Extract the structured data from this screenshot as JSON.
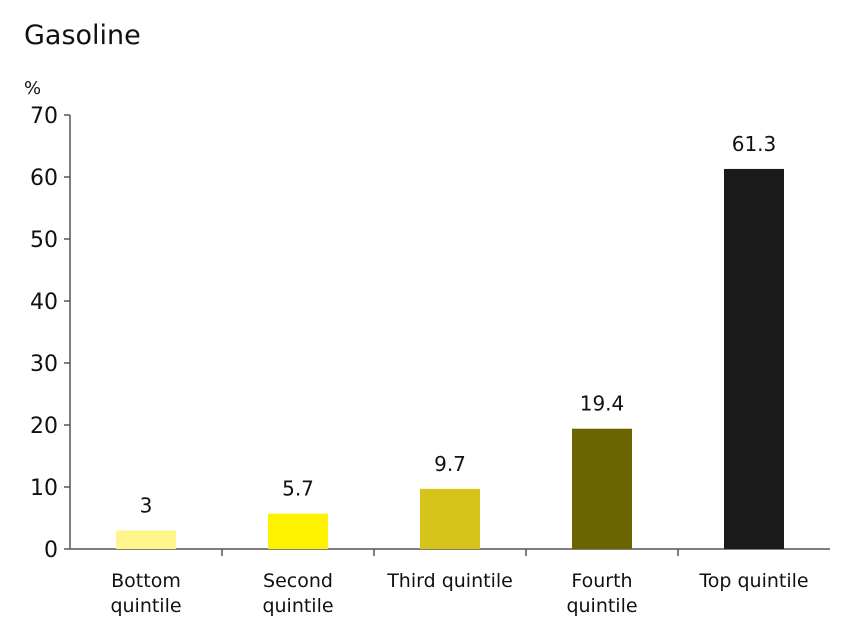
{
  "chart_data": {
    "type": "bar",
    "title": "Gasoline",
    "ylabel": "%",
    "xlabel": "",
    "ylim": [
      0,
      70
    ],
    "yticks": [
      0,
      10,
      20,
      30,
      40,
      50,
      60,
      70
    ],
    "grid": false,
    "legend": "none",
    "categories": [
      [
        "Bottom",
        "quintile"
      ],
      [
        "Second",
        "quintile"
      ],
      [
        "Third quintile"
      ],
      [
        "Fourth",
        "quintile"
      ],
      [
        "Top quintile"
      ]
    ],
    "values": [
      3,
      5.7,
      9.7,
      19.4,
      61.3
    ],
    "data_labels": [
      "3",
      "5.7",
      "9.7",
      "19.4",
      "61.3"
    ],
    "colors": [
      "#fff58c",
      "#fff200",
      "#d6c41a",
      "#6b6400",
      "#1a1a1a"
    ]
  }
}
